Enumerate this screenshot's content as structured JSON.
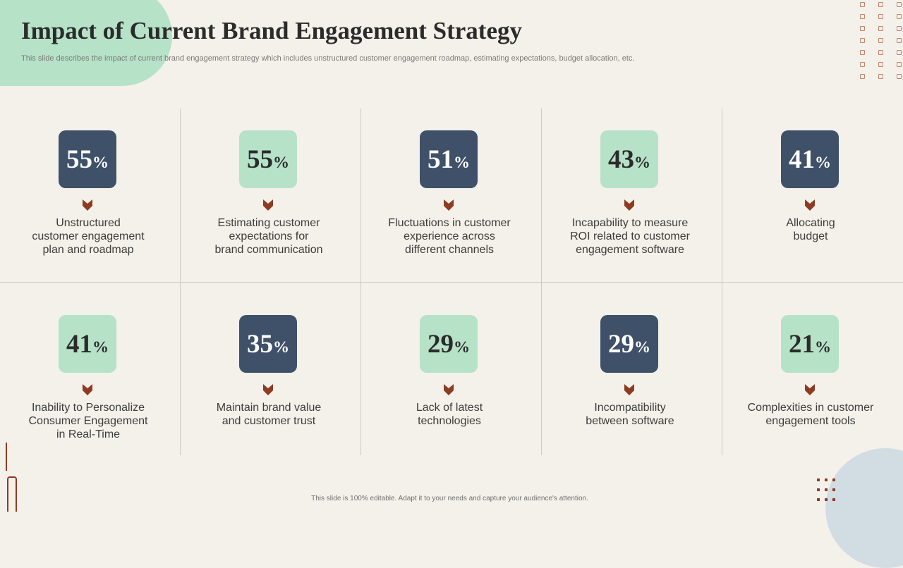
{
  "title": "Impact of Current Brand Engagement Strategy",
  "subtitle": "This slide describes the impact of current brand engagement strategy which includes unstructured customer engagement roadmap, estimating expectations, budget allocation, etc.",
  "footer": "This slide is 100% editable. Adapt it to your needs and capture your audience's attention.",
  "colors": {
    "dark_badge": "#3f5169",
    "light_badge": "#b6e2c8",
    "accent": "#8e3b22",
    "background": "#f4f1ea"
  },
  "icons": {
    "chevron": "chevron-down-icon"
  },
  "items": [
    {
      "value": "55",
      "suffix": "%",
      "label": "Unstructured\ncustomer engagement\nplan and roadmap",
      "style": "dark"
    },
    {
      "value": "55",
      "suffix": "%",
      "label": "Estimating customer\nexpectations for\nbrand communication",
      "style": "light"
    },
    {
      "value": "51",
      "suffix": "%",
      "label": "Fluctuations in customer\nexperience across\ndifferent channels",
      "style": "dark"
    },
    {
      "value": "43",
      "suffix": "%",
      "label": "Incapability to measure\nROI related to customer\nengagement software",
      "style": "light"
    },
    {
      "value": "41",
      "suffix": "%",
      "label": "Allocating\nbudget",
      "style": "dark"
    },
    {
      "value": "41",
      "suffix": "%",
      "label": "Inability to Personalize\nConsumer Engagement\nin Real-Time",
      "style": "light"
    },
    {
      "value": "35",
      "suffix": "%",
      "label": "Maintain brand value\nand customer trust",
      "style": "dark"
    },
    {
      "value": "29",
      "suffix": "%",
      "label": "Lack of latest\ntechnologies",
      "style": "light"
    },
    {
      "value": "29",
      "suffix": "%",
      "label": "Incompatibility\nbetween software",
      "style": "dark"
    },
    {
      "value": "21",
      "suffix": "%",
      "label": "Complexities in customer\nengagement tools",
      "style": "light"
    }
  ]
}
